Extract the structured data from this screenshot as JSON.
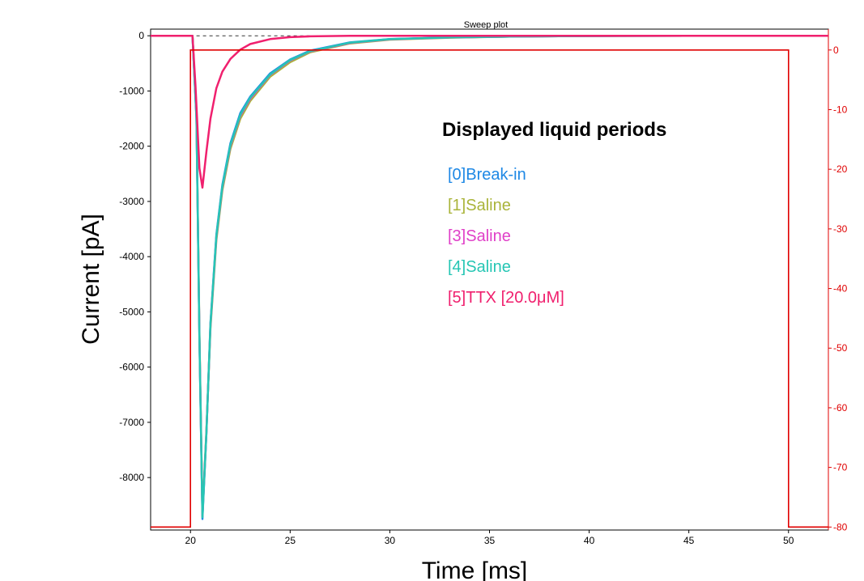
{
  "chart_data": {
    "type": "line",
    "title": "Sweep plot",
    "xlabel": "Time [ms]",
    "ylabel": "Current [pA]",
    "xlim": [
      18,
      52
    ],
    "ylim": [
      -8950,
      120
    ],
    "y2lim": [
      -80.5,
      3.5
    ],
    "x_ticks": [
      "20",
      "25",
      "30",
      "35",
      "40",
      "45",
      "50"
    ],
    "y_ticks": [
      "0",
      "-1000",
      "-2000",
      "-3000",
      "-4000",
      "-5000",
      "-6000",
      "-7000",
      "-8000"
    ],
    "y2_ticks": [
      "0",
      "-10",
      "-20",
      "-30",
      "-40",
      "-50",
      "-60",
      "-70",
      "-80"
    ],
    "legend_title": "Displayed liquid periods",
    "grid": false,
    "baseline_dashed": true,
    "series": [
      {
        "name": "[0]Break-in",
        "color": "#1e88e5",
        "x": [
          18,
          19.5,
          20.1,
          20.3,
          20.45,
          20.6,
          20.8,
          21.0,
          21.3,
          21.6,
          22.0,
          22.5,
          23.0,
          24.0,
          25.0,
          26.0,
          28.0,
          30.0,
          33.0,
          36.0,
          40.0,
          45.0,
          50.0,
          52.0
        ],
        "y": [
          0,
          0,
          0,
          -1500,
          -5500,
          -8750,
          -7200,
          -5200,
          -3600,
          -2700,
          -1950,
          -1400,
          -1100,
          -680,
          -430,
          -270,
          -120,
          -60,
          -30,
          -15,
          -5,
          0,
          0,
          0
        ]
      },
      {
        "name": "[1]Saline",
        "color": "#aab43a",
        "x": [
          18,
          19.5,
          20.1,
          20.3,
          20.45,
          20.6,
          20.8,
          21.0,
          21.3,
          21.6,
          22.0,
          22.5,
          23.0,
          24.0,
          25.0,
          26.0,
          28.0,
          30.0,
          33.0,
          36.0,
          40.0,
          45.0,
          50.0,
          52.0
        ],
        "y": [
          0,
          0,
          0,
          -1400,
          -5400,
          -8650,
          -7150,
          -5300,
          -3700,
          -2800,
          -2050,
          -1500,
          -1180,
          -740,
          -480,
          -300,
          -140,
          -70,
          -35,
          -15,
          -5,
          0,
          0,
          0
        ]
      },
      {
        "name": "[3]Saline",
        "color": "#e040c8",
        "x": [
          18,
          19.5,
          20.1,
          20.3,
          20.45,
          20.6,
          20.8,
          21.0,
          21.3,
          21.6,
          22.0,
          22.5,
          23.0,
          24.0,
          25.0,
          26.0,
          28.0,
          30.0,
          33.0,
          36.0,
          40.0,
          45.0,
          50.0,
          52.0
        ],
        "y": [
          0,
          0,
          0,
          -1450,
          -5450,
          -8700,
          -7180,
          -5250,
          -3650,
          -2750,
          -2000,
          -1450,
          -1140,
          -710,
          -450,
          -285,
          -130,
          -65,
          -32,
          -15,
          -5,
          0,
          0,
          0
        ]
      },
      {
        "name": "[4]Saline",
        "color": "#26c6b4",
        "x": [
          18,
          19.5,
          20.1,
          20.3,
          20.45,
          20.6,
          20.8,
          21.0,
          21.3,
          21.6,
          22.0,
          22.5,
          23.0,
          24.0,
          25.0,
          26.0,
          28.0,
          30.0,
          33.0,
          36.0,
          40.0,
          45.0,
          50.0,
          52.0
        ],
        "y": [
          0,
          0,
          0,
          -1480,
          -5480,
          -8720,
          -7190,
          -5230,
          -3630,
          -2730,
          -1980,
          -1430,
          -1120,
          -700,
          -440,
          -280,
          -125,
          -62,
          -31,
          -15,
          -5,
          0,
          0,
          0
        ]
      },
      {
        "name": "[5]TTX [20.0μM]",
        "color": "#f0206e",
        "x": [
          18,
          19.5,
          20.1,
          20.25,
          20.45,
          20.6,
          20.8,
          21.0,
          21.3,
          21.6,
          22.0,
          22.5,
          23.0,
          24.0,
          25.0,
          26.0,
          28.0,
          30.0,
          33.0,
          36.0,
          40.0,
          45.0,
          50.0,
          52.0
        ],
        "y": [
          0,
          0,
          0,
          -900,
          -2400,
          -2750,
          -2100,
          -1500,
          -950,
          -650,
          -420,
          -250,
          -150,
          -60,
          -25,
          -10,
          0,
          0,
          0,
          0,
          0,
          0,
          0,
          0
        ]
      }
    ],
    "command_trace": {
      "color": "#e00000",
      "axis": "right",
      "x": [
        18,
        20.0,
        20.0,
        50.0,
        50.0,
        52
      ],
      "y": [
        -80,
        -80,
        0,
        0,
        -80,
        -80
      ]
    }
  }
}
